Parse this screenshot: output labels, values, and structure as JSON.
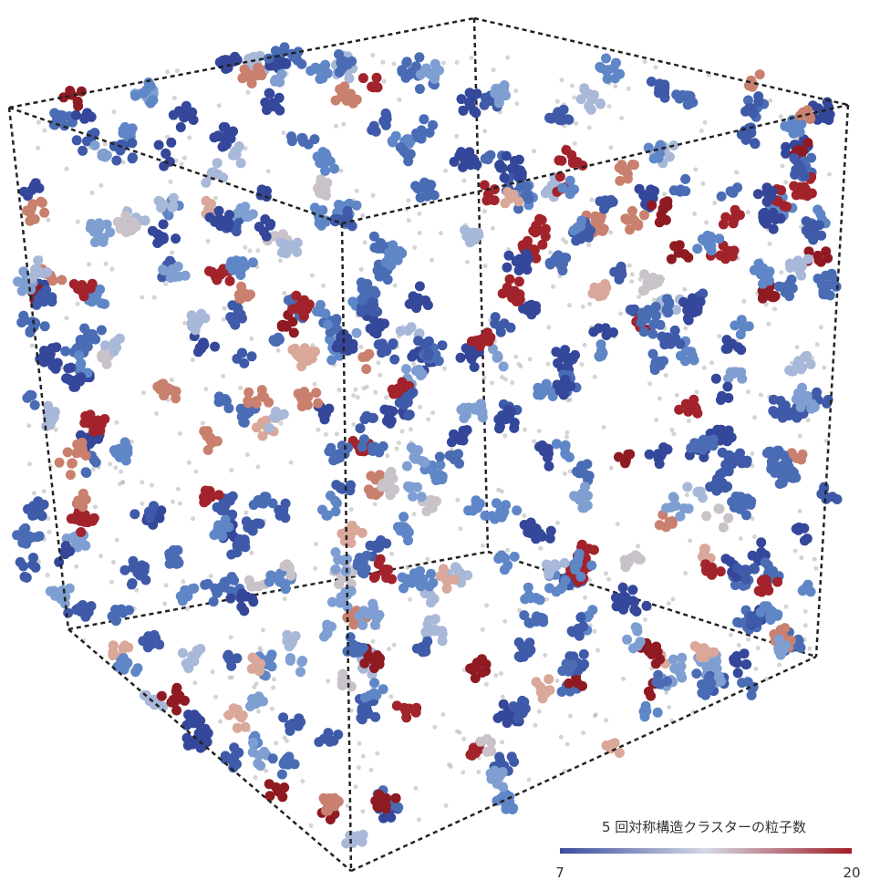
{
  "colorbar": {
    "title": "5 回対称構造クラスターの粒子数",
    "min": 7,
    "max": 20
  }
}
